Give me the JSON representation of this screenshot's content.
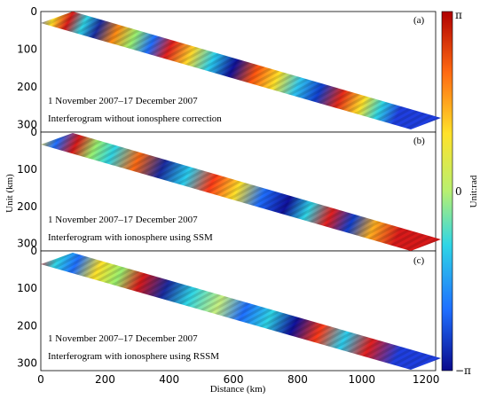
{
  "figure": {
    "y_label": "Unit (km)",
    "x_label": "Distance (km)",
    "colorbar": {
      "label": "Unit:rad",
      "ticks": [
        "π",
        "0",
        "−π"
      ],
      "colors": [
        "#0a0a8c",
        "#1f6fff",
        "#2fd6e6",
        "#b8f070",
        "#ffe22a",
        "#ff6a12",
        "#b00000"
      ]
    },
    "x_ticks": [
      "0",
      "200",
      "400",
      "600",
      "800",
      "1000",
      "1200"
    ],
    "y_ticks": [
      "0",
      "100",
      "200",
      "300"
    ],
    "panels": [
      {
        "tag": "(a)",
        "date": "1 November 2007–17 December 2007",
        "desc": "Interferogram without ionosphere correction"
      },
      {
        "tag": "(b)",
        "date": "1 November 2007–17 December 2007",
        "desc": "Interferogram with ionosphere using SSM"
      },
      {
        "tag": "(c)",
        "date": "1 November 2007–17 December 2007",
        "desc": "Interferogram with ionosphere using RSSM"
      }
    ]
  },
  "chart_data": {
    "type": "heatmap",
    "x_range": [
      0,
      1230
    ],
    "y_range": [
      0,
      320
    ],
    "x_ticks": [
      0,
      200,
      400,
      600,
      800,
      1000,
      1200
    ],
    "y_ticks": [
      0,
      100,
      200,
      300
    ],
    "value_range": [
      "−π",
      "π"
    ],
    "panels": [
      "(a)",
      "(b)",
      "(c)"
    ]
  }
}
